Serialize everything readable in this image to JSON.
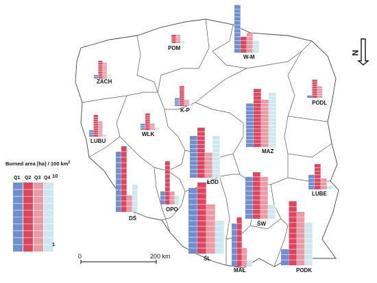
{
  "legend": {
    "title": "Burned area [ha] / 100 km",
    "title_sup": "2",
    "quarters": [
      "Q1",
      "Q2",
      "Q3",
      "Q4"
    ],
    "max_label": "10",
    "min_label": "1"
  },
  "colors": {
    "Q1": "#6f8fd4",
    "Q2": "#e0455f",
    "Q3": "#ec9aa4",
    "Q4": "#cde8f0",
    "grid": "#ffffff",
    "border": "#555555"
  },
  "scale": {
    "start": "0",
    "end": "200 km"
  },
  "north": {
    "label": "N"
  },
  "regions": [
    {
      "code": "ZACH",
      "values": [
        2,
        10,
        9,
        2
      ]
    },
    {
      "code": "POM",
      "values": [
        0,
        4,
        4,
        1
      ]
    },
    {
      "code": "W-M",
      "values": [
        12,
        4,
        5,
        3
      ]
    },
    {
      "code": "PODL",
      "values": [
        1,
        8,
        5,
        0
      ]
    },
    {
      "code": "K-P",
      "values": [
        4,
        10,
        3,
        1
      ]
    },
    {
      "code": "LUBU",
      "values": [
        3,
        10,
        7,
        1
      ]
    },
    {
      "code": "WLK",
      "values": [
        3,
        8,
        3,
        1
      ]
    },
    {
      "code": "ŁÓD",
      "values": [
        10,
        12,
        6,
        10
      ]
    },
    {
      "code": "MAZ",
      "values": [
        12,
        16,
        13,
        15
      ]
    },
    {
      "code": "DŚ",
      "values": [
        11,
        12,
        3,
        5
      ]
    },
    {
      "code": "OPO",
      "values": [
        3,
        10,
        3,
        2
      ]
    },
    {
      "code": "LUBE",
      "values": [
        4,
        7,
        3,
        1
      ]
    },
    {
      "code": "ŚW",
      "values": [
        9,
        10,
        9,
        3
      ]
    },
    {
      "code": "ŚL",
      "values": [
        12,
        13,
        9,
        6
      ]
    },
    {
      "code": "MAŁ",
      "values": [
        7,
        8,
        3,
        1
      ]
    },
    {
      "code": "PODK",
      "values": [
        3,
        12,
        10,
        8
      ]
    }
  ]
}
